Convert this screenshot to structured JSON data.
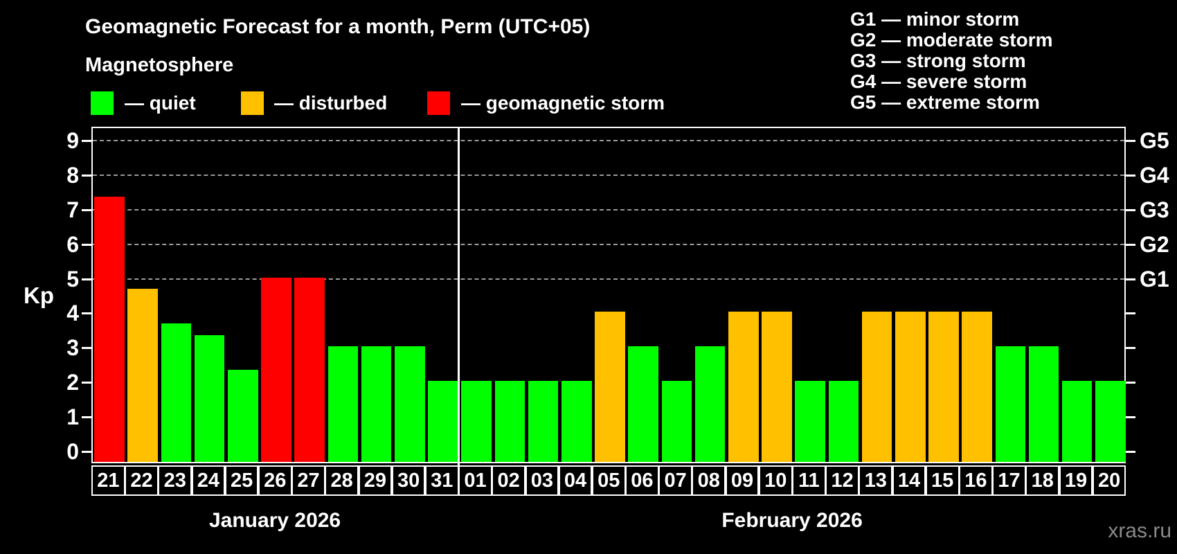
{
  "title": "Geomagnetic Forecast for a month, Perm (UTC+05)",
  "subtitle": "Magnetosphere",
  "legend": {
    "items": [
      {
        "label": "— quiet",
        "color": "#00ff00"
      },
      {
        "label": "— disturbed",
        "color": "#ffc000"
      },
      {
        "label": "— geomagnetic storm",
        "color": "#ff0000"
      }
    ]
  },
  "g_legend": {
    "lines": [
      "G1 — minor storm",
      "G2 — moderate storm",
      "G3 — strong storm",
      "G4 — severe storm",
      "G5 — extreme storm"
    ]
  },
  "axes": {
    "kp_label": "Kp",
    "y_ticks": [
      0,
      1,
      2,
      3,
      4,
      5,
      6,
      7,
      8,
      9
    ],
    "right_axis": [
      {
        "label": "G1",
        "kp": 5
      },
      {
        "label": "G2",
        "kp": 6
      },
      {
        "label": "G3",
        "kp": 7
      },
      {
        "label": "G4",
        "kp": 8
      },
      {
        "label": "G5",
        "kp": 9
      }
    ]
  },
  "months": [
    {
      "label": "January 2026",
      "start_index": 0,
      "count": 11
    },
    {
      "label": "February 2026",
      "start_index": 11,
      "count": 20
    }
  ],
  "watermark": "xras.ru",
  "chart_data": {
    "type": "bar",
    "title": "Geomagnetic Forecast for a month, Perm (UTC+05)",
    "ylabel": "Kp",
    "ylim": [
      0,
      9
    ],
    "grid_kp_levels": [
      5,
      6,
      7,
      8,
      9
    ],
    "legend_position": "top",
    "status_colors": {
      "quiet": "#00ff00",
      "disturbed": "#ffc000",
      "storm": "#ff0000"
    },
    "days": [
      {
        "month": "January 2026",
        "day": "21",
        "kp": 7.33,
        "status": "storm"
      },
      {
        "month": "January 2026",
        "day": "22",
        "kp": 4.67,
        "status": "disturbed"
      },
      {
        "month": "January 2026",
        "day": "23",
        "kp": 3.67,
        "status": "quiet"
      },
      {
        "month": "January 2026",
        "day": "24",
        "kp": 3.33,
        "status": "quiet"
      },
      {
        "month": "January 2026",
        "day": "25",
        "kp": 2.33,
        "status": "quiet"
      },
      {
        "month": "January 2026",
        "day": "26",
        "kp": 5.0,
        "status": "storm"
      },
      {
        "month": "January 2026",
        "day": "27",
        "kp": 5.0,
        "status": "storm"
      },
      {
        "month": "January 2026",
        "day": "28",
        "kp": 3.0,
        "status": "quiet"
      },
      {
        "month": "January 2026",
        "day": "29",
        "kp": 3.0,
        "status": "quiet"
      },
      {
        "month": "January 2026",
        "day": "30",
        "kp": 3.0,
        "status": "quiet"
      },
      {
        "month": "January 2026",
        "day": "31",
        "kp": 2.0,
        "status": "quiet"
      },
      {
        "month": "February 2026",
        "day": "01",
        "kp": 2.0,
        "status": "quiet"
      },
      {
        "month": "February 2026",
        "day": "02",
        "kp": 2.0,
        "status": "quiet"
      },
      {
        "month": "February 2026",
        "day": "03",
        "kp": 2.0,
        "status": "quiet"
      },
      {
        "month": "February 2026",
        "day": "04",
        "kp": 2.0,
        "status": "quiet"
      },
      {
        "month": "February 2026",
        "day": "05",
        "kp": 4.0,
        "status": "disturbed"
      },
      {
        "month": "February 2026",
        "day": "06",
        "kp": 3.0,
        "status": "quiet"
      },
      {
        "month": "February 2026",
        "day": "07",
        "kp": 2.0,
        "status": "quiet"
      },
      {
        "month": "February 2026",
        "day": "08",
        "kp": 3.0,
        "status": "quiet"
      },
      {
        "month": "February 2026",
        "day": "09",
        "kp": 4.0,
        "status": "disturbed"
      },
      {
        "month": "February 2026",
        "day": "10",
        "kp": 4.0,
        "status": "disturbed"
      },
      {
        "month": "February 2026",
        "day": "11",
        "kp": 2.0,
        "status": "quiet"
      },
      {
        "month": "February 2026",
        "day": "12",
        "kp": 2.0,
        "status": "quiet"
      },
      {
        "month": "February 2026",
        "day": "13",
        "kp": 4.0,
        "status": "disturbed"
      },
      {
        "month": "February 2026",
        "day": "14",
        "kp": 4.0,
        "status": "disturbed"
      },
      {
        "month": "February 2026",
        "day": "15",
        "kp": 4.0,
        "status": "disturbed"
      },
      {
        "month": "February 2026",
        "day": "16",
        "kp": 4.0,
        "status": "disturbed"
      },
      {
        "month": "February 2026",
        "day": "17",
        "kp": 3.0,
        "status": "quiet"
      },
      {
        "month": "February 2026",
        "day": "18",
        "kp": 3.0,
        "status": "quiet"
      },
      {
        "month": "February 2026",
        "day": "19",
        "kp": 2.0,
        "status": "quiet"
      },
      {
        "month": "February 2026",
        "day": "20",
        "kp": 2.0,
        "status": "quiet"
      }
    ]
  }
}
